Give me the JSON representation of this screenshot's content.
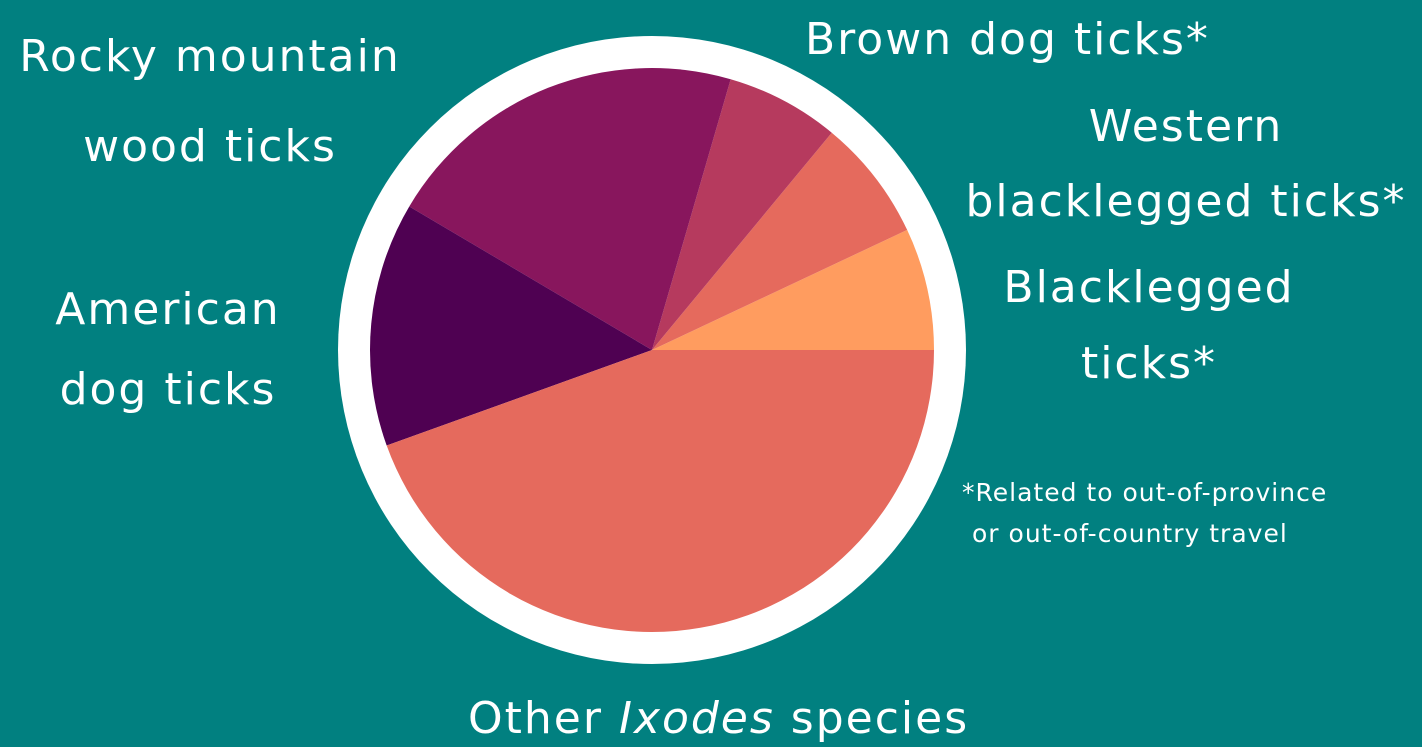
{
  "colors": {
    "background": "#018080",
    "ring": "#ffffff"
  },
  "chart_data": {
    "type": "pie",
    "title": "",
    "slices": [
      {
        "label": "Blacklegged ticks*",
        "value": 7,
        "color": "#ff9c5f"
      },
      {
        "label": "Western blacklegged ticks*",
        "value": 7,
        "color": "#e56a5d"
      },
      {
        "label": "Brown dog ticks*",
        "value": 6.5,
        "color": "#b63a5e"
      },
      {
        "label": "Rocky mountain wood ticks",
        "value": 21,
        "color": "#88165d"
      },
      {
        "label": "American dog ticks",
        "value": 14,
        "color": "#4f0152"
      },
      {
        "label": "Other Ixodes species",
        "value": 44.5,
        "color": "#e56a5d"
      }
    ],
    "start_angle_deg": 0,
    "direction": "counterclockwise"
  },
  "labels": {
    "rocky_line1": "Rocky mountain",
    "rocky_line2": "wood ticks",
    "american_line1": "American",
    "american_line2": "dog ticks",
    "brown": "Brown dog ticks*",
    "western_line1": "Western",
    "western_line2": "blacklegged ticks*",
    "black_line1": "Blacklegged",
    "black_line2": "ticks*",
    "other_prefix": "Other",
    "other_genus": "Ixodes",
    "other_suffix": "species"
  },
  "note": {
    "line1": "*Related to out-of-province",
    "line2": "or out-of-country travel"
  }
}
